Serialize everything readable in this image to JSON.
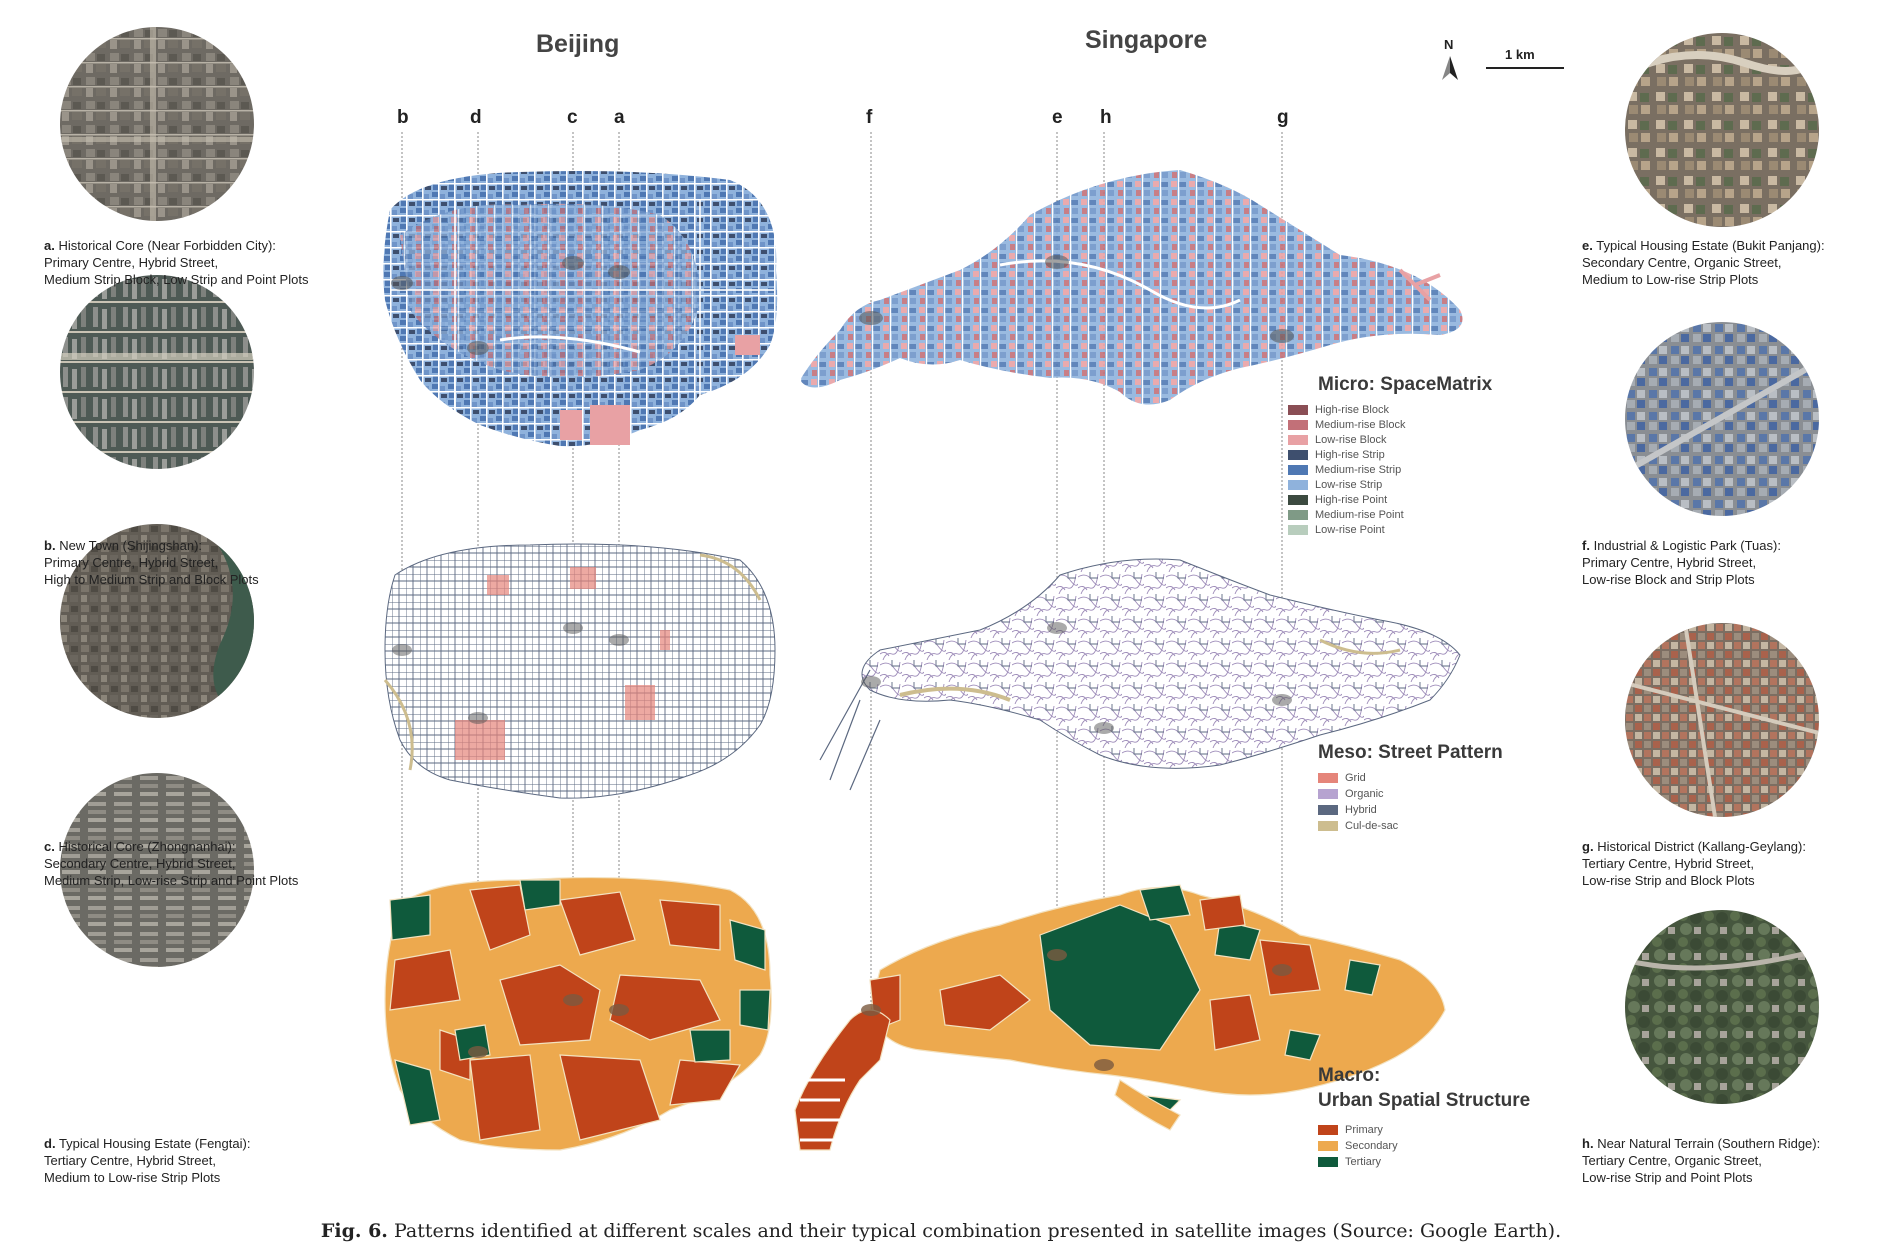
{
  "cities": {
    "left": "Beijing",
    "right": "Singapore"
  },
  "north_label": "N",
  "scale_label": "1 km",
  "column_letters": [
    "b",
    "d",
    "c",
    "a",
    "f",
    "e",
    "h",
    "g"
  ],
  "left_captions": [
    {
      "letter": "a.",
      "line1": "Historical Core (Near Forbidden City):",
      "line2": "Primary Centre, Hybrid Street,",
      "line3": "Medium Strip Block, Low Strip and Point Plots"
    },
    {
      "letter": "b.",
      "line1": "New Town (Shijingshan):",
      "line2": "Primary Centre, Hybrid Street,",
      "line3": "High to Medium Strip and Block Plots"
    },
    {
      "letter": "c.",
      "line1": "Historical Core (Zhongnanhai):",
      "line2": "Secondary Centre, Hybrid Street,",
      "line3": "Medium Strip, Low-rise Strip and Point Plots"
    },
    {
      "letter": "d.",
      "line1": "Typical Housing Estate (Fengtai):",
      "line2": "Tertiary Centre, Hybrid Street,",
      "line3": "Medium to Low-rise Strip Plots"
    }
  ],
  "right_captions": [
    {
      "letter": "e.",
      "line1": "Typical Housing Estate (Bukit Panjang):",
      "line2": "Secondary Centre, Organic Street,",
      "line3": "Medium to Low-rise Strip Plots"
    },
    {
      "letter": "f.",
      "line1": "Industrial & Logistic Park (Tuas):",
      "line2": "Primary Centre, Hybrid Street,",
      "line3": "Low-rise Block and Strip Plots"
    },
    {
      "letter": "g.",
      "line1": "Historical District (Kallang-Geylang):",
      "line2": "Tertiary Centre, Hybrid Street,",
      "line3": "Low-rise Strip and Block Plots"
    },
    {
      "letter": "h.",
      "line1": "Near Natural Terrain (Southern Ridge):",
      "line2": "Tertiary Centre, Organic Street,",
      "line3": "Low-rise Strip and Point Plots"
    }
  ],
  "legend_micro": {
    "title": "Micro: SpaceMatrix",
    "items": [
      {
        "label": "High-rise Block",
        "color": "#8a4e55"
      },
      {
        "label": "Medium-rise Block",
        "color": "#c27078"
      },
      {
        "label": "Low-rise Block",
        "color": "#e8a1a4"
      },
      {
        "label": "High-rise Strip",
        "color": "#3e4f6e"
      },
      {
        "label": "Medium-rise Strip",
        "color": "#4f78b3"
      },
      {
        "label": "Low-rise Strip",
        "color": "#8fb2dc"
      },
      {
        "label": "High-rise Point",
        "color": "#3c4a40"
      },
      {
        "label": "Medium-rise Point",
        "color": "#7f9a86"
      },
      {
        "label": "Low-rise Point",
        "color": "#b8cdbd"
      }
    ]
  },
  "legend_meso": {
    "title": "Meso: Street Pattern",
    "items": [
      {
        "label": "Grid",
        "color": "#e5857a"
      },
      {
        "label": "Organic",
        "color": "#b6a3d0"
      },
      {
        "label": "Hybrid",
        "color": "#5b6880"
      },
      {
        "label": "Cul-de-sac",
        "color": "#cdbd8f"
      }
    ]
  },
  "legend_macro": {
    "title_line1": "Macro:",
    "title_line2": "Urban Spatial Structure",
    "items": [
      {
        "label": "Primary",
        "color": "#c0441a"
      },
      {
        "label": "Secondary",
        "color": "#eda94e"
      },
      {
        "label": "Tertiary",
        "color": "#0f5a3c"
      }
    ]
  },
  "figure_caption": {
    "label": "Fig. 6.",
    "text": "Patterns identified at different scales and their typical combination presented in satellite images (Source: Google Earth)."
  }
}
